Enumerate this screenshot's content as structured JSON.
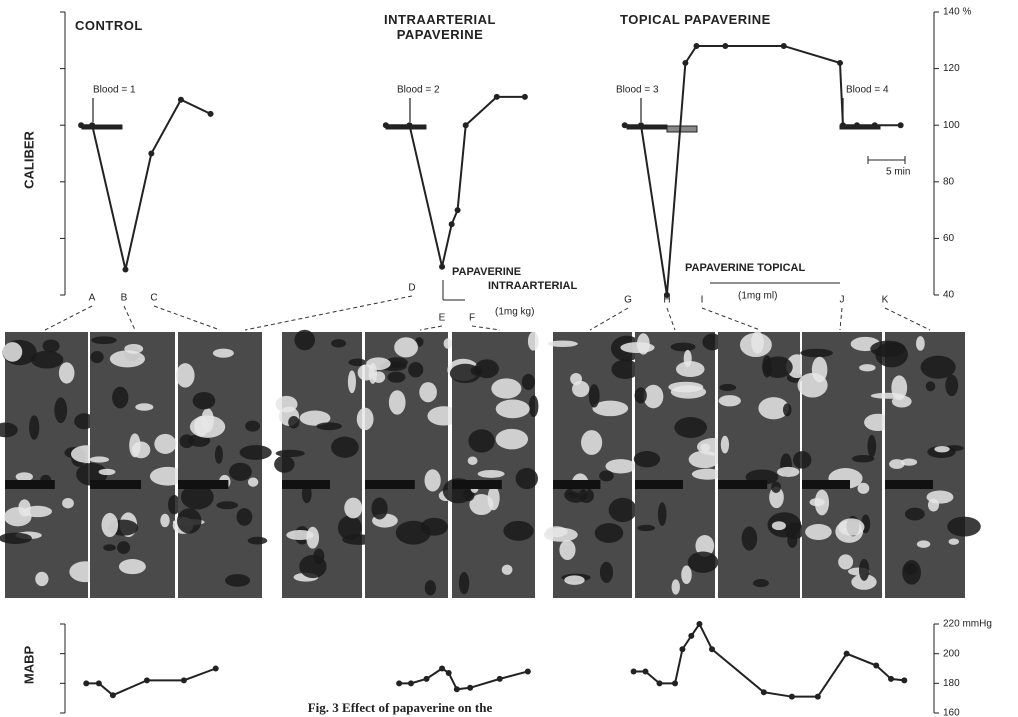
{
  "chart_data": [
    {
      "type": "line",
      "y_label": "CALIBER",
      "xlim": [
        0,
        116
      ],
      "ylim": [
        40,
        140
      ],
      "yticks": [
        40,
        60,
        80,
        100,
        120,
        {
          "value": 140,
          "label": "140 %"
        }
      ],
      "series": [
        {
          "name": "CONTROL",
          "color": "#222222",
          "x": [
            1.5,
            3,
            7.5,
            11,
            15,
            19
          ],
          "values": [
            100,
            100,
            49,
            90,
            109,
            104
          ]
        },
        {
          "name": "INTRAARTERIAL PAPAVERINE",
          "color": "#222222",
          "x": [
            42.7,
            45.9,
            50.3,
            51.6,
            52.4,
            53.5,
            57.7,
            61.5
          ],
          "values": [
            100,
            100,
            50,
            65,
            70,
            100,
            110,
            110
          ]
        },
        {
          "name": "TOPICAL PAPAVERINE",
          "color": "#222222",
          "x": [
            75,
            77.2,
            80.7,
            83.2,
            84.7,
            88.6,
            96.5,
            104.1,
            104.5,
            106.4,
            108.8,
            112.3
          ],
          "values": [
            100,
            100,
            40,
            122,
            128,
            128,
            128,
            122,
            100,
            100,
            100,
            100
          ]
        }
      ],
      "annotations": [
        "Blood = 1",
        "Blood = 2",
        "Blood = 3",
        "Blood = 4",
        "PAPAVERINE",
        "INTRAARTERIAL",
        "(1mg kg)",
        "PAPAVERINE TOPICAL",
        "(1mg ml)",
        "5 min"
      ],
      "frame_labels": [
        "A",
        "B",
        "C",
        "D",
        "E",
        "F",
        "G",
        "H",
        "I",
        "J",
        "K"
      ]
    },
    {
      "type": "line",
      "y_label": "MABP",
      "xlim": [
        0,
        116
      ],
      "ylim": [
        160,
        220
      ],
      "yticks": [
        160,
        180,
        200,
        {
          "value": 220,
          "label": "220 mmHg"
        }
      ],
      "series": [
        {
          "color": "#222222",
          "x": [
            2.2,
            3.9,
            5.8,
            10.4,
            15.4,
            19.7
          ],
          "values": [
            180,
            180,
            172,
            182,
            182,
            190
          ]
        },
        {
          "color": "#222222",
          "x": [
            44.5,
            46.1,
            48.2,
            50.3,
            51.2,
            52.3,
            54.1,
            58.1,
            61.9
          ],
          "values": [
            180,
            180,
            183,
            190,
            187,
            176,
            177,
            183,
            188
          ]
        },
        {
          "color": "#222222",
          "x": [
            76.2,
            77.8,
            79.7,
            81.8,
            82.8,
            84,
            85.1,
            86.8,
            93.8,
            97.6,
            101.1,
            105,
            109,
            111,
            112.8
          ],
          "values": [
            188,
            188,
            180,
            180,
            203,
            212,
            220,
            203,
            174,
            171,
            171,
            200,
            192,
            183,
            182
          ]
        }
      ],
      "caption": "Fig. 3   Effect of papaverine on the"
    }
  ]
}
